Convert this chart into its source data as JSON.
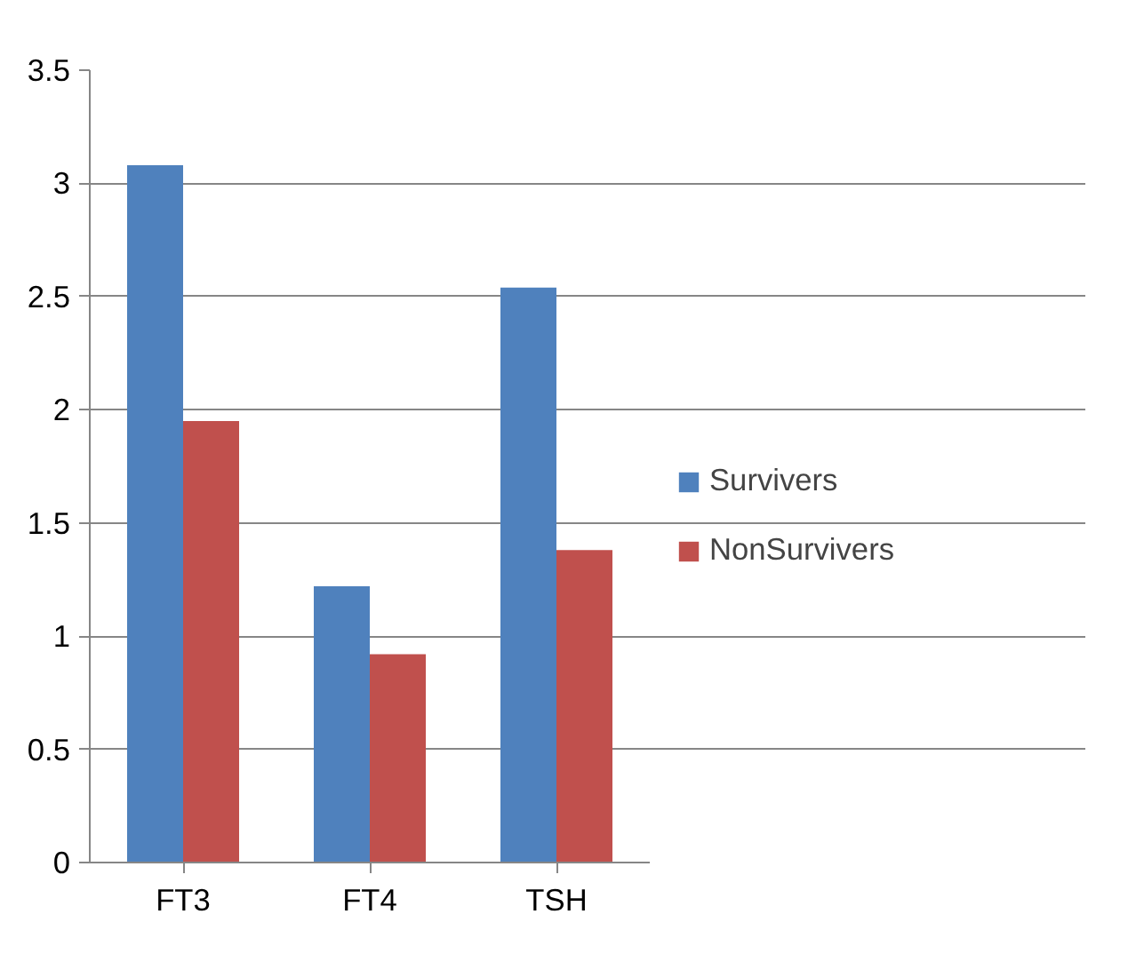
{
  "chart_data": {
    "type": "bar",
    "categories": [
      "FT3",
      "FT4",
      "TSH"
    ],
    "series": [
      {
        "name": "Survivers",
        "color": "#4f81bd",
        "values": [
          3.08,
          1.22,
          2.54
        ]
      },
      {
        "name": "NonSurvivers",
        "color": "#c0504d",
        "values": [
          1.95,
          0.92,
          1.38
        ]
      }
    ],
    "ylim": [
      0,
      3.5
    ],
    "yticks": [
      0,
      0.5,
      1,
      1.5,
      2,
      2.5,
      3,
      3.5
    ],
    "grid": "y",
    "legend": "right"
  }
}
